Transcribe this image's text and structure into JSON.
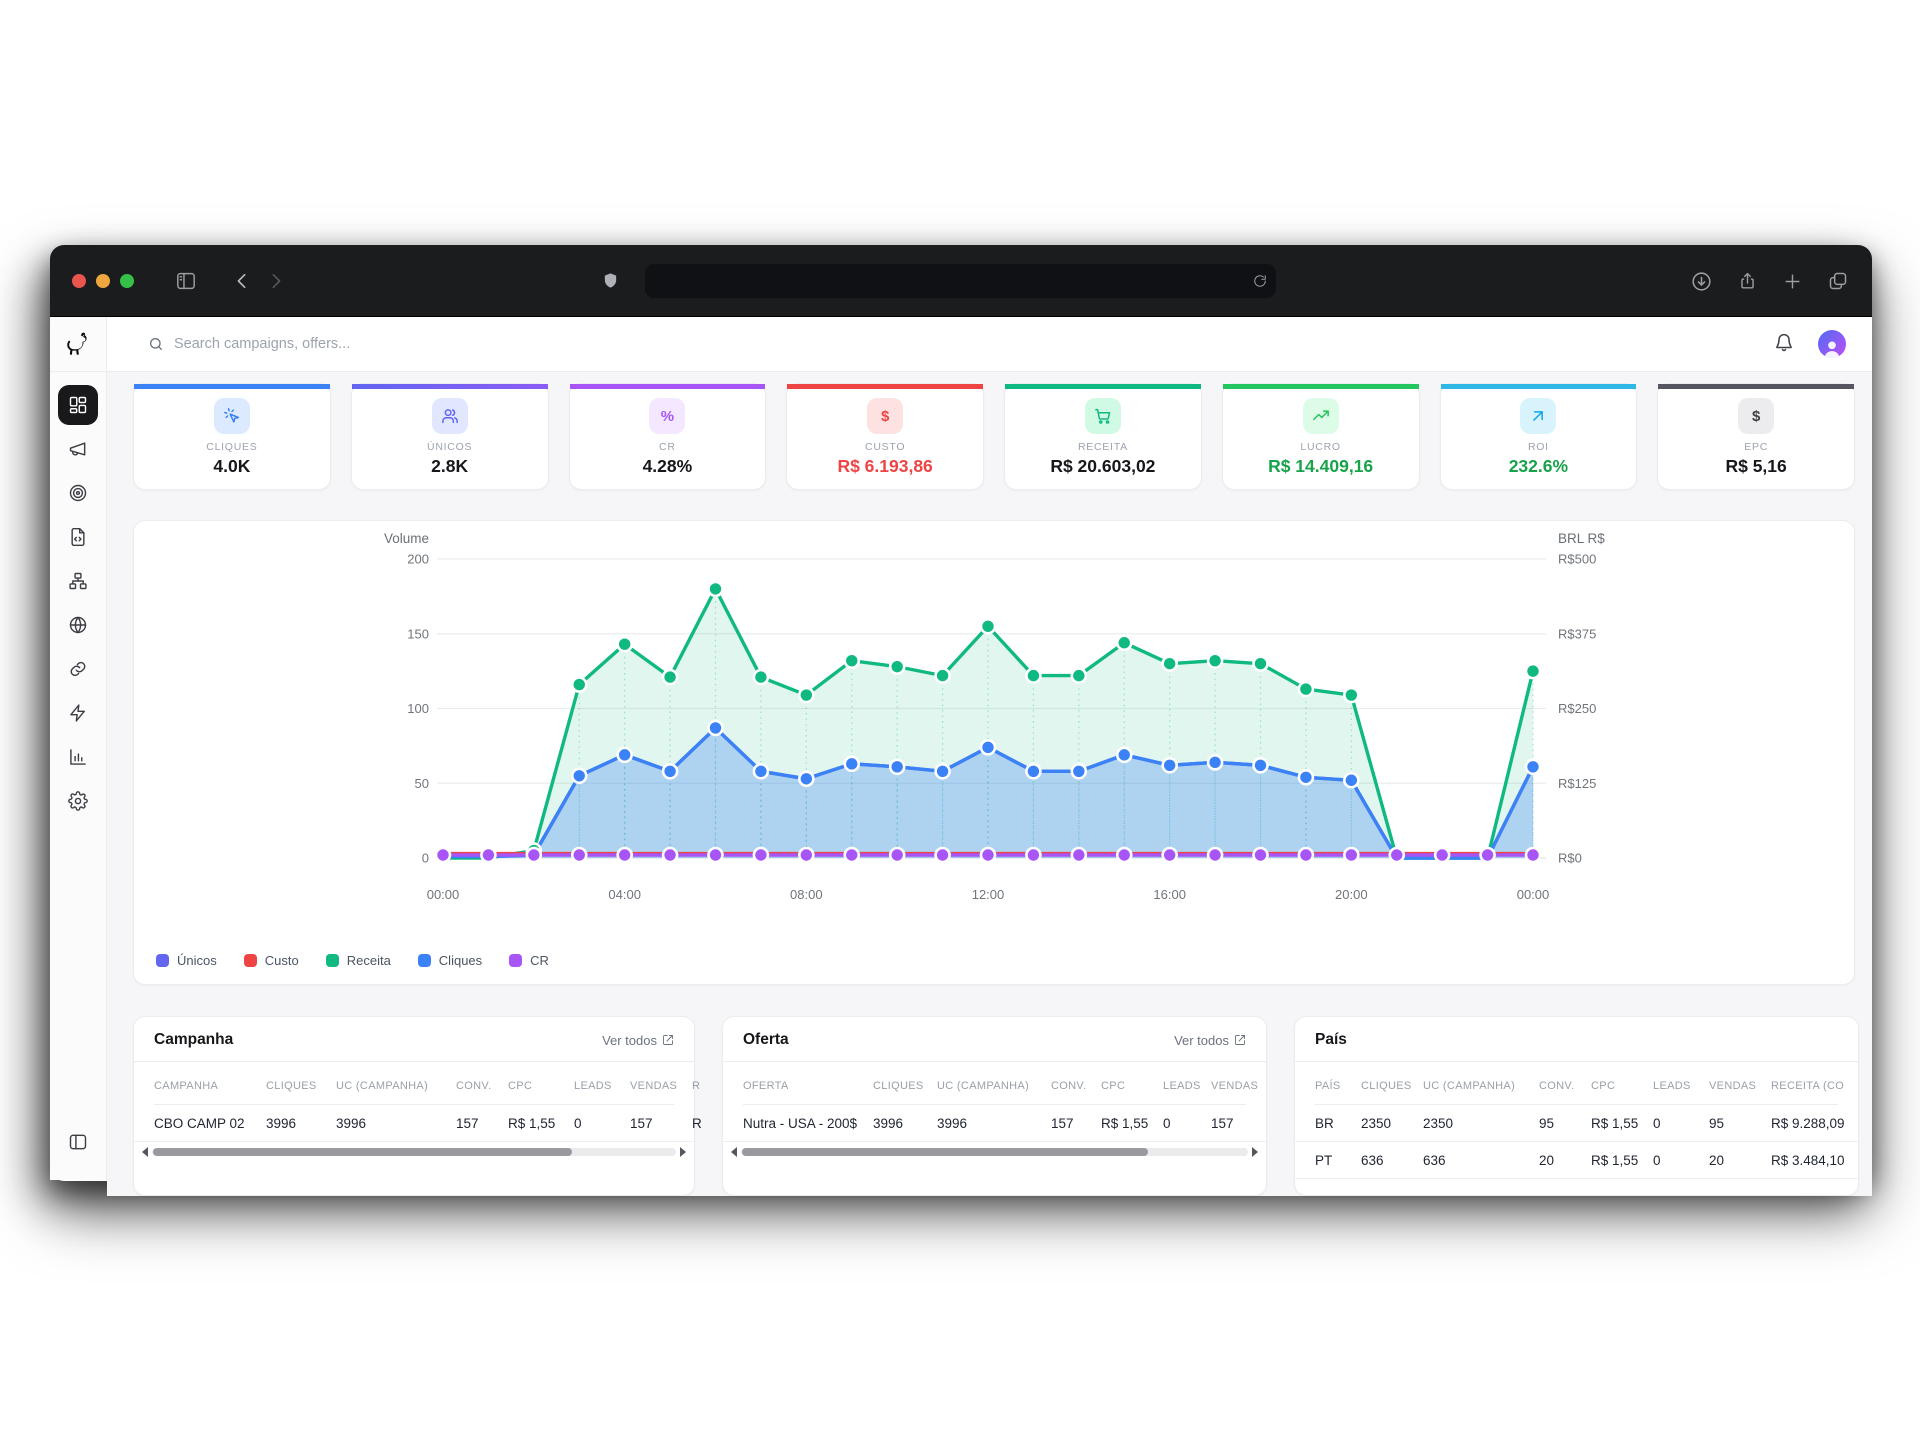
{
  "browser": {
    "address_value": "",
    "address_placeholder": "",
    "traffic_lights": {
      "close": "#e9564d",
      "minimize": "#f0a63f",
      "zoom": "#35c148"
    }
  },
  "header": {
    "search_placeholder": "Search campaigns, offers..."
  },
  "sidebar": {
    "items": [
      {
        "icon": "dashboard-icon",
        "active": true
      },
      {
        "icon": "megaphone-icon",
        "active": false
      },
      {
        "icon": "target-icon",
        "active": false
      },
      {
        "icon": "file-code-icon",
        "active": false
      },
      {
        "icon": "sitemap-icon",
        "active": false
      },
      {
        "icon": "globe-icon",
        "active": false
      },
      {
        "icon": "link-icon",
        "active": false
      },
      {
        "icon": "bolt-icon",
        "active": false
      },
      {
        "icon": "bar-chart-icon",
        "active": false
      },
      {
        "icon": "gear-icon",
        "active": false
      }
    ]
  },
  "kpis": [
    {
      "label": "CLIQUES",
      "value": "4.0K",
      "accent": "#3b82f6",
      "icon": "cursor-click-icon",
      "icon_bg": "#dbeafe",
      "icon_color": "#3b82f6",
      "value_color": "#17171b"
    },
    {
      "label": "ÚNICOS",
      "value": "2.8K",
      "accent": "linear-gradient(90deg,#6366f1,#8b5cf6)",
      "icon": "users-icon",
      "icon_bg": "#e0e7ff",
      "icon_color": "#6366f1",
      "value_color": "#17171b"
    },
    {
      "label": "CR",
      "value": "4.28%",
      "accent": "#a855f7",
      "icon": "percent-icon",
      "icon_bg": "#f3e8ff",
      "icon_color": "#a855f7",
      "value_color": "#17171b"
    },
    {
      "label": "CUSTO",
      "value": "R$ 6.193,86",
      "accent": "#ef4444",
      "icon": "dollar-icon",
      "icon_bg": "#fee2e2",
      "icon_color": "#ef4444",
      "value_color": "#ef4444"
    },
    {
      "label": "RECEITA",
      "value": "R$ 20.603,02",
      "accent": "#10b981",
      "icon": "cart-icon",
      "icon_bg": "#d1fae5",
      "icon_color": "#10b981",
      "value_color": "#17171b"
    },
    {
      "label": "LUCRO",
      "value": "R$ 14.409,16",
      "accent": "#22c55e",
      "icon": "trend-up-icon",
      "icon_bg": "#dcfce7",
      "icon_color": "#22c55e",
      "value_color": "#17a34a"
    },
    {
      "label": "ROI",
      "value": "232.6%",
      "accent": "#2fb8e6",
      "icon": "arrow-up-right-icon",
      "icon_bg": "#d9f3fc",
      "icon_color": "#0ea5e9",
      "value_color": "#17a34a"
    },
    {
      "label": "EPC",
      "value": "R$ 5,16",
      "accent": "#565660",
      "icon": "dollar-icon",
      "icon_bg": "#ececee",
      "icon_color": "#3f3f46",
      "value_color": "#17171b"
    }
  ],
  "chart_data": {
    "type": "line",
    "x_hours": [
      "00:00",
      "01:00",
      "02:00",
      "03:00",
      "04:00",
      "05:00",
      "06:00",
      "07:00",
      "08:00",
      "09:00",
      "10:00",
      "11:00",
      "12:00",
      "13:00",
      "14:00",
      "15:00",
      "16:00",
      "17:00",
      "18:00",
      "19:00",
      "20:00",
      "21:00",
      "22:00",
      "23:00",
      "00:00"
    ],
    "x_tick_labels": [
      "00:00",
      "04:00",
      "08:00",
      "12:00",
      "16:00",
      "20:00",
      "00:00"
    ],
    "left_axis": {
      "title": "Volume",
      "ticks": [
        0,
        50,
        100,
        150,
        200
      ],
      "max": 200
    },
    "right_axis": {
      "title": "BRL R$",
      "labels": [
        "R$0",
        "R$125",
        "R$250",
        "R$375",
        "R$500"
      ]
    },
    "grid": true,
    "legend_position": "bottom-left",
    "series": [
      {
        "name": "Únicos",
        "color": "#6366f1",
        "fill": false,
        "fill_opacity": 0,
        "markers": false,
        "marker_all": false,
        "droplines": false,
        "values": [
          1,
          1,
          2,
          55,
          69,
          58,
          87,
          58,
          53,
          63,
          61,
          58,
          74,
          58,
          58,
          69,
          62,
          64,
          62,
          54,
          52,
          0,
          0,
          0,
          61
        ]
      },
      {
        "name": "Receita",
        "color": "#10b981",
        "fill": true,
        "fill_opacity": 0.13,
        "markers": true,
        "marker_all": false,
        "droplines": true,
        "values": [
          0,
          0,
          5,
          116,
          143,
          121,
          180,
          121,
          109,
          132,
          128,
          122,
          155,
          122,
          122,
          144,
          130,
          132,
          130,
          113,
          109,
          0,
          0,
          0,
          125
        ]
      },
      {
        "name": "Cliques",
        "color": "#3b82f6",
        "fill": true,
        "fill_opacity": 0.3,
        "markers": true,
        "marker_all": false,
        "droplines": true,
        "values": [
          1,
          1,
          2,
          55,
          69,
          58,
          87,
          58,
          53,
          63,
          61,
          58,
          74,
          58,
          58,
          69,
          62,
          64,
          62,
          54,
          52,
          0,
          0,
          0,
          61
        ]
      },
      {
        "name": "Custo",
        "color": "#ef4444",
        "fill": false,
        "fill_opacity": 0,
        "markers": false,
        "marker_all": false,
        "droplines": false,
        "values": [
          3,
          3,
          3,
          3,
          3,
          3,
          3,
          3,
          3,
          3,
          3,
          3,
          3,
          3,
          3,
          3,
          3,
          3,
          3,
          3,
          3,
          3,
          3,
          3,
          3
        ]
      },
      {
        "name": "CR",
        "color": "#a855f7",
        "fill": false,
        "fill_opacity": 0,
        "markers": true,
        "marker_all": true,
        "droplines": false,
        "values": [
          2,
          2,
          2,
          2,
          2,
          2,
          2,
          2,
          2,
          2,
          2,
          2,
          2,
          2,
          2,
          2,
          2,
          2,
          2,
          2,
          2,
          2,
          2,
          2,
          2
        ]
      }
    ],
    "legend": [
      {
        "label": "Únicos",
        "color": "#6366f1"
      },
      {
        "label": "Custo",
        "color": "#ef4444"
      },
      {
        "label": "Receita",
        "color": "#10b981"
      },
      {
        "label": "Cliques",
        "color": "#3b82f6"
      },
      {
        "label": "CR",
        "color": "#a855f7"
      }
    ]
  },
  "tables": [
    {
      "title": "Campanha",
      "link_label": "Ver todos",
      "scrollbar": true,
      "columns": [
        "CAMPANHA",
        "CLIQUES",
        "UC (CAMPANHA)",
        "CONV.",
        "CPC",
        "LEADS",
        "VENDAS",
        "R"
      ],
      "rows": [
        [
          "CBO CAMP 02",
          "3996",
          "3996",
          "157",
          "R$ 1,55",
          "0",
          "157",
          "R"
        ]
      ]
    },
    {
      "title": "Oferta",
      "link_label": "Ver todos",
      "scrollbar": true,
      "columns": [
        "OFERTA",
        "CLIQUES",
        "UC (CAMPANHA)",
        "CONV.",
        "CPC",
        "LEADS",
        "VENDAS"
      ],
      "rows": [
        [
          "Nutra - USA - 200$",
          "3996",
          "3996",
          "157",
          "R$ 1,55",
          "0",
          "157"
        ]
      ]
    },
    {
      "title": "País",
      "link_label": "",
      "scrollbar": false,
      "columns": [
        "PAÍS",
        "CLIQUES",
        "UC (CAMPANHA)",
        "CONV.",
        "CPC",
        "LEADS",
        "VENDAS",
        "RECEITA (CO"
      ],
      "rows": [
        [
          "BR",
          "2350",
          "2350",
          "95",
          "R$ 1,55",
          "0",
          "95",
          "R$ 9.288,09"
        ],
        [
          "PT",
          "636",
          "636",
          "20",
          "R$ 1,55",
          "0",
          "20",
          "R$ 3.484,10"
        ]
      ]
    }
  ]
}
